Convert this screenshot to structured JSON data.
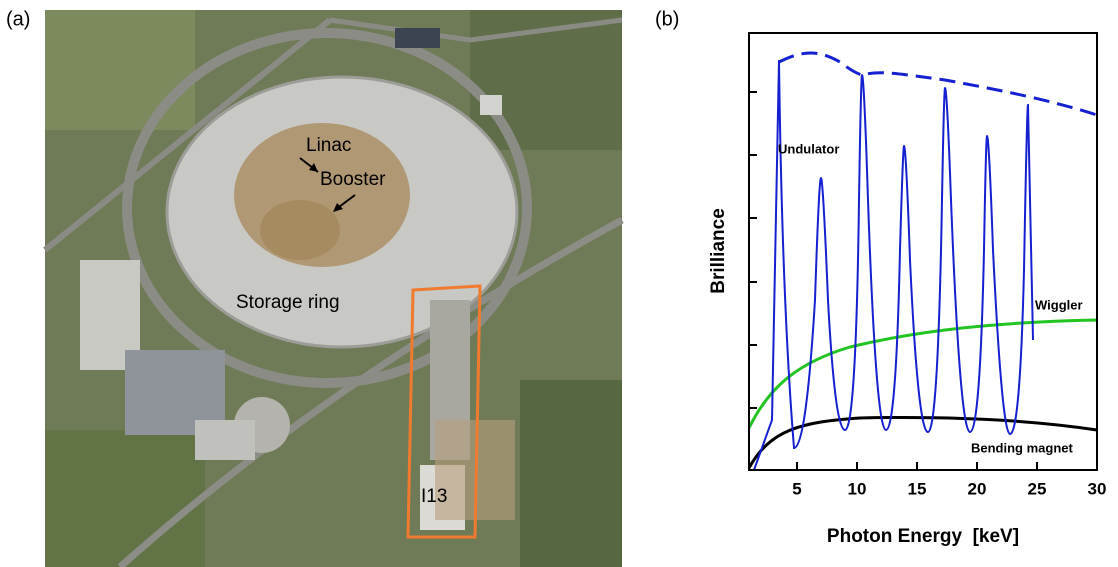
{
  "figure": {
    "panel_a": "(a)",
    "panel_b": "(b)",
    "photo_labels": {
      "linac": "Linac",
      "booster": "Booster",
      "storage_ring": "Storage ring",
      "beamline": "I13"
    }
  },
  "chart_data": {
    "type": "line",
    "x_label": "Photon Energy  [keV]",
    "y_label": "Brilliance",
    "xlim": [
      1,
      30
    ],
    "xticks": [
      5,
      10,
      15,
      20,
      25,
      30
    ],
    "annotations": [
      "Undulator",
      "Wiggler",
      "Bending magnet"
    ]
  }
}
